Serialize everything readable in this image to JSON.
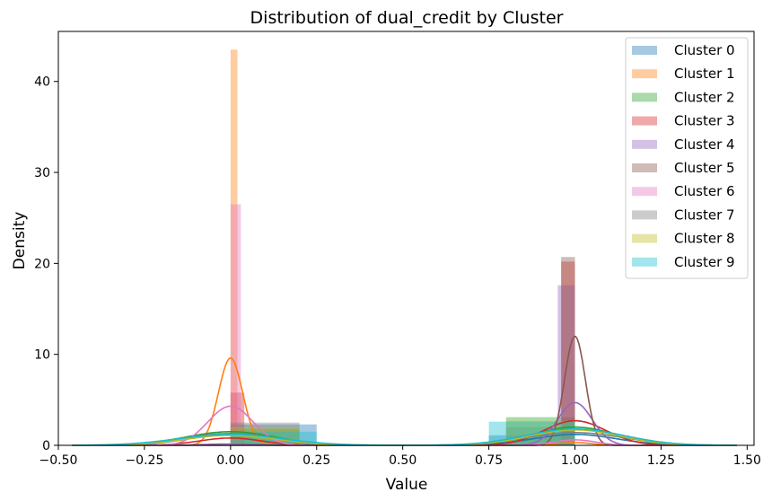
{
  "chart_data": {
    "type": "bar",
    "title": "Distribution of dual_credit by Cluster",
    "xlabel": "Value",
    "ylabel": "Density",
    "xlim": [
      -0.5,
      1.52
    ],
    "ylim": [
      0,
      45.5
    ],
    "x_ticks": [
      -0.5,
      -0.25,
      0.0,
      0.25,
      0.5,
      0.75,
      1.0,
      1.25,
      1.5
    ],
    "x_tick_labels": [
      "−0.50",
      "−0.25",
      "0.00",
      "0.25",
      "0.50",
      "0.75",
      "1.00",
      "1.25",
      "1.50"
    ],
    "y_ticks": [
      0,
      10,
      20,
      30,
      40
    ],
    "y_tick_labels": [
      "0",
      "10",
      "20",
      "30",
      "40"
    ],
    "legend_position": "top-right",
    "grid": false,
    "series": [
      {
        "name": "Cluster 0",
        "color": "#1f77b4",
        "bars": [
          [
            0.0,
            0.25,
            2.3
          ],
          [
            0.75,
            1.0,
            1.1
          ]
        ],
        "kde": {
          "peaks": [
            [
              0.0,
              1.2,
              0.12
            ],
            [
              1.0,
              1.2,
              0.12
            ]
          ]
        }
      },
      {
        "name": "Cluster 1",
        "color": "#ff7f0e",
        "bars": [
          [
            0.0,
            0.02,
            43.5
          ],
          [
            0.98,
            1.0,
            0.4
          ]
        ],
        "kde": {
          "peaks": [
            [
              0.0,
              9.6,
              0.035
            ],
            [
              1.0,
              0.3,
              0.05
            ]
          ]
        }
      },
      {
        "name": "Cluster 2",
        "color": "#2ca02c",
        "bars": [
          [
            0.0,
            0.2,
            1.8
          ],
          [
            0.8,
            1.0,
            3.1
          ]
        ],
        "kde": {
          "peaks": [
            [
              0.0,
              1.5,
              0.13
            ],
            [
              1.0,
              2.0,
              0.12
            ]
          ]
        }
      },
      {
        "name": "Cluster 3",
        "color": "#d62728",
        "bars": [
          [
            0.0,
            0.04,
            5.8
          ],
          [
            0.96,
            1.0,
            20.2
          ]
        ],
        "kde": {
          "peaks": [
            [
              0.0,
              0.8,
              0.09
            ],
            [
              1.0,
              2.7,
              0.09
            ]
          ]
        }
      },
      {
        "name": "Cluster 4",
        "color": "#9467bd",
        "bars": [
          [
            0.0,
            0.04,
            0.3
          ],
          [
            0.95,
            1.0,
            17.6
          ]
        ],
        "kde": {
          "peaks": [
            [
              0.0,
              0.15,
              0.08
            ],
            [
              1.0,
              4.7,
              0.05
            ]
          ]
        }
      },
      {
        "name": "Cluster 5",
        "color": "#8c564b",
        "bars": [
          [
            0.0,
            0.04,
            0.2
          ],
          [
            0.96,
            1.0,
            20.7
          ]
        ],
        "kde": {
          "peaks": [
            [
              1.0,
              12.0,
              0.03
            ]
          ]
        }
      },
      {
        "name": "Cluster 6",
        "color": "#e377c2",
        "bars": [
          [
            0.0,
            0.03,
            26.5
          ],
          [
            0.97,
            1.0,
            0.5
          ]
        ],
        "kde": {
          "peaks": [
            [
              0.0,
              4.3,
              0.065
            ],
            [
              1.0,
              0.6,
              0.06
            ]
          ]
        }
      },
      {
        "name": "Cluster 7",
        "color": "#7f7f7f",
        "bars": [
          [
            0.0,
            0.2,
            2.5
          ],
          [
            0.8,
            1.0,
            2.0
          ]
        ],
        "kde": {
          "peaks": [
            [
              0.0,
              1.3,
              0.14
            ],
            [
              1.0,
              1.4,
              0.14
            ]
          ]
        }
      },
      {
        "name": "Cluster 8",
        "color": "#bcbd22",
        "bars": [
          [
            0.0,
            0.2,
            2.0
          ],
          [
            0.8,
            1.0,
            2.7
          ]
        ],
        "kde": {
          "peaks": [
            [
              0.0,
              1.1,
              0.13
            ],
            [
              1.0,
              1.7,
              0.13
            ]
          ]
        }
      },
      {
        "name": "Cluster 9",
        "color": "#17becf",
        "bars": [
          [
            0.0,
            0.25,
            1.5
          ],
          [
            0.75,
            1.0,
            2.6
          ]
        ],
        "kde": {
          "peaks": [
            [
              0.0,
              1.2,
              0.15
            ],
            [
              1.0,
              1.8,
              0.14
            ]
          ]
        }
      }
    ]
  }
}
